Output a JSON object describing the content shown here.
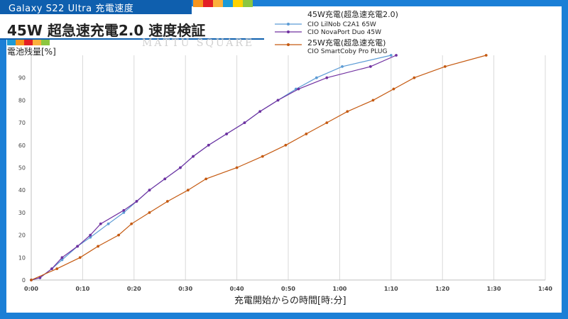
{
  "banner": {
    "tag": "Galaxy S22 Ultra 充電速度",
    "headline": "45W 超急速充電2.0 速度検証",
    "watermark": "MATTU SQUARE",
    "stripe_colors": [
      "#f7941d",
      "#e31e24",
      "#fbb03b",
      "#8cc63f",
      "#1b9ad6",
      "#ffd200"
    ]
  },
  "chart_data": {
    "type": "line",
    "title": "",
    "ylabel": "電池残量[%]",
    "xlabel": "充電開始からの時間[時:分]",
    "xlim": [
      0,
      100
    ],
    "ylim": [
      0,
      100
    ],
    "x_ticks": [
      {
        "v": 0,
        "label": "0:00"
      },
      {
        "v": 10,
        "label": "0:10"
      },
      {
        "v": 20,
        "label": "0:20"
      },
      {
        "v": 30,
        "label": "0:30"
      },
      {
        "v": 40,
        "label": "0:40"
      },
      {
        "v": 50,
        "label": "0:50"
      },
      {
        "v": 60,
        "label": "1:00"
      },
      {
        "v": 70,
        "label": "1:10"
      },
      {
        "v": 80,
        "label": "1:20"
      },
      {
        "v": 90,
        "label": "1:30"
      },
      {
        "v": 100,
        "label": "1:40"
      }
    ],
    "y_ticks": [
      0,
      10,
      20,
      30,
      40,
      50,
      60,
      70,
      80,
      90
    ],
    "grid": "vertical",
    "legend_groups": [
      {
        "header": "45W充電(超急速充電2.0)",
        "series": [
          0,
          1
        ]
      },
      {
        "header": "25W充電(超急速充電)",
        "series": [
          2
        ]
      }
    ],
    "series": [
      {
        "name": "CIO LilNob C2A1 65W",
        "color": "#5b9bd5",
        "x": [
          0,
          1.7,
          4,
          6,
          9,
          11.5,
          15,
          18,
          20.5,
          23,
          26,
          29,
          31.5,
          34.5,
          38,
          41.5,
          44.5,
          48,
          51.5,
          55.5,
          60.5,
          70
        ],
        "y": [
          0,
          1,
          5,
          9,
          15,
          19,
          25,
          30,
          35,
          40,
          45,
          50,
          55,
          60,
          65,
          70,
          75,
          80,
          85,
          90,
          95,
          100
        ]
      },
      {
        "name": "CIO NovaPort Duo 45W",
        "color": "#7030a0",
        "x": [
          0,
          1.7,
          4,
          6,
          9,
          11.5,
          13.5,
          18,
          20.5,
          23,
          26,
          29,
          31.5,
          34.5,
          38,
          41.5,
          44.5,
          48,
          52,
          57.5,
          66,
          71
        ],
        "y": [
          0,
          1,
          5,
          10,
          15,
          20,
          25,
          31,
          35,
          40,
          45,
          50,
          55,
          60,
          65,
          70,
          75,
          80,
          85,
          90,
          95,
          100
        ]
      },
      {
        "name": "CIO SmartCoby Pro PLUG",
        "color": "#c55a11",
        "x": [
          0,
          5,
          9.5,
          13,
          17,
          19.5,
          23,
          26.5,
          30.5,
          34,
          40,
          45,
          49.5,
          53.5,
          57.5,
          61.5,
          66.5,
          70.5,
          74.5,
          80.5,
          88.5
        ],
        "y": [
          0,
          5,
          10,
          15,
          20,
          25,
          30,
          35,
          40,
          45,
          50,
          55,
          60,
          65,
          70,
          75,
          80,
          85,
          90,
          95,
          100
        ]
      }
    ]
  }
}
